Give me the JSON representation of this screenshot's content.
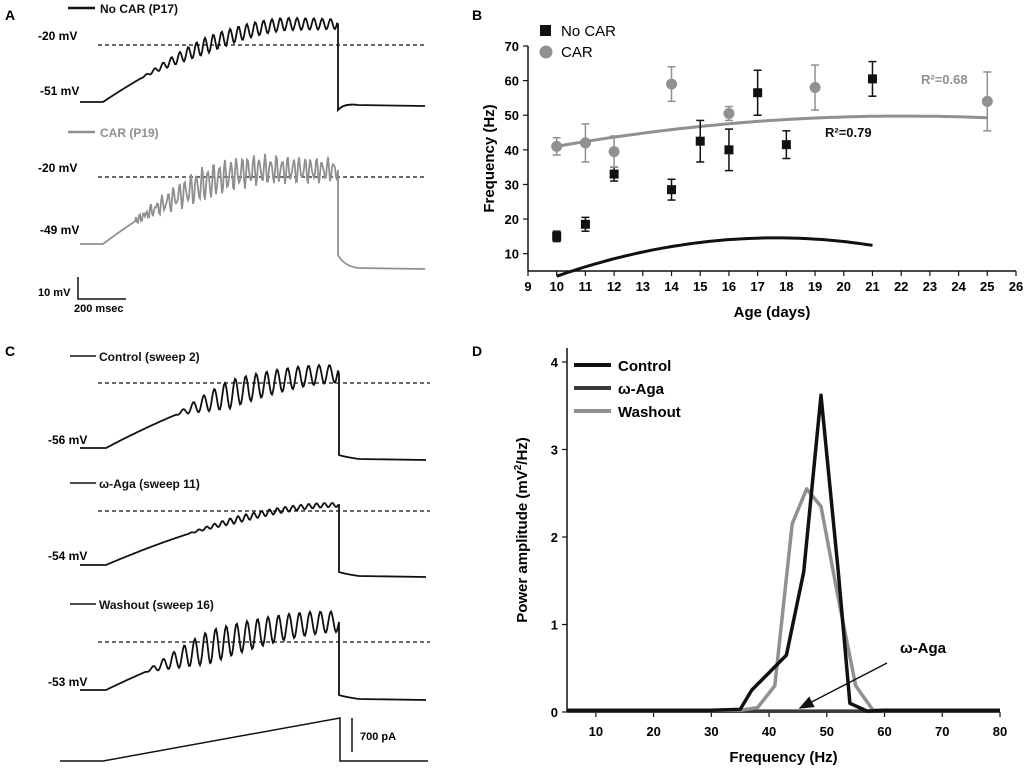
{
  "panels": {
    "a": {
      "label": "A",
      "trace1": {
        "name": "No CAR (P17)",
        "threshold": "-20 mV",
        "rest": "-51 mV"
      },
      "trace2": {
        "name": "CAR (P19)",
        "threshold": "-20 mV",
        "rest": "-49 mV"
      },
      "scalebar": {
        "v": "10 mV",
        "t": "200 msec"
      }
    },
    "b": {
      "label": "B"
    },
    "c": {
      "label": "C",
      "trace1": {
        "name": "Control (sweep 2)",
        "rest": "-56 mV"
      },
      "trace2": {
        "name": "ω-Aga (sweep 11)",
        "rest": "-54 mV"
      },
      "trace3": {
        "name": "Washout (sweep 16)",
        "rest": "-53 mV"
      },
      "stim": {
        "scale": "700 pA"
      }
    },
    "d": {
      "label": "D"
    }
  },
  "colors": {
    "black": "#111111",
    "gray": "#909090",
    "dark": "#3a3a3a"
  },
  "chart_data": [
    {
      "type": "scatter",
      "panel": "B",
      "xlabel": "Age (days)",
      "ylabel": "Frequency (Hz)",
      "xlim": [
        9,
        26
      ],
      "ylim": [
        5,
        70
      ],
      "xticks": [
        "9",
        "10",
        "11",
        "12",
        "13",
        "14",
        "15",
        "16",
        "17",
        "18",
        "19",
        "20",
        "21",
        "22",
        "23",
        "24",
        "25",
        "26"
      ],
      "yticks": [
        "10",
        "20",
        "30",
        "40",
        "50",
        "60",
        "70"
      ],
      "legend": [
        "No CAR",
        "CAR"
      ],
      "series": [
        {
          "name": "No CAR",
          "marker": "square",
          "color": "#111111",
          "x": [
            10,
            11,
            12,
            14,
            15,
            16,
            17,
            18,
            21
          ],
          "y": [
            15,
            18.5,
            33,
            28.5,
            42.5,
            40,
            56.5,
            41.5,
            60.5
          ],
          "err": [
            1.5,
            2,
            2,
            3,
            6,
            6,
            6.5,
            4,
            5
          ],
          "fit": {
            "x0": 10,
            "x1": 21,
            "a": -0.19,
            "b": 6.7,
            "c": -44.5
          },
          "r2": "R²=0.79"
        },
        {
          "name": "CAR",
          "marker": "circle",
          "color": "#909090",
          "x": [
            10,
            11,
            12,
            14,
            16,
            19,
            25
          ],
          "y": [
            41,
            42,
            39.5,
            59,
            50.5,
            58,
            54
          ],
          "err": [
            2.5,
            5.5,
            4.5,
            5,
            2,
            6.5,
            8.5
          ],
          "fit": {
            "x0": 10,
            "x1": 25,
            "a": -0.06,
            "b": 2.65,
            "c": 20.5
          },
          "r2": "R²=0.68"
        }
      ]
    },
    {
      "type": "line",
      "panel": "D",
      "xlabel": "Frequency (Hz)",
      "ylabel": "Power amplitude (mV²/Hz)",
      "xlim": [
        5,
        80
      ],
      "ylim": [
        0,
        4
      ],
      "xticks": [
        "10",
        "20",
        "30",
        "40",
        "50",
        "60",
        "70",
        "80"
      ],
      "yticks": [
        "0",
        "1",
        "2",
        "3",
        "4"
      ],
      "legend": [
        "Control",
        "ω-Aga",
        "Washout"
      ],
      "annotation": "ω-Aga",
      "series": [
        {
          "name": "Control",
          "color": "#111111",
          "x": [
            5,
            10,
            20,
            30,
            35,
            37,
            40,
            43,
            46,
            49,
            52,
            54,
            57,
            60,
            70,
            80
          ],
          "y": [
            0.02,
            0.02,
            0.02,
            0.02,
            0.03,
            0.25,
            0.45,
            0.65,
            1.6,
            3.62,
            1.6,
            0.1,
            0.01,
            0.02,
            0.02,
            0.02
          ]
        },
        {
          "name": "ω-Aga",
          "color": "#3a3a3a",
          "x": [
            5,
            20,
            30,
            40,
            50,
            60,
            70,
            80
          ],
          "y": [
            0.01,
            0.01,
            0.01,
            0.01,
            0.01,
            0.01,
            0.01,
            0.01
          ]
        },
        {
          "name": "Washout",
          "color": "#909090",
          "x": [
            5,
            10,
            20,
            30,
            35,
            38,
            41,
            44,
            46.5,
            49,
            52,
            55,
            58,
            60,
            70,
            80
          ],
          "y": [
            0.02,
            0.02,
            0.02,
            0.02,
            0.02,
            0.05,
            0.3,
            2.15,
            2.55,
            2.35,
            1.3,
            0.3,
            0.02,
            0.02,
            0.02,
            0.02
          ]
        }
      ]
    }
  ]
}
